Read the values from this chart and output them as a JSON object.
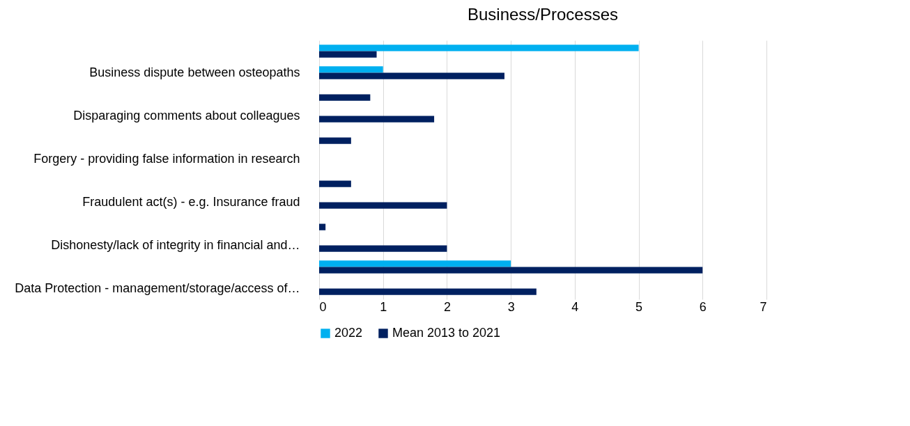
{
  "chart_data": {
    "type": "bar",
    "orientation": "horizontal",
    "title": "Business/Processes",
    "categories": [
      null,
      "Business dispute between osteopaths",
      null,
      "Disparaging comments about colleagues",
      null,
      "Forgery - providing false information in research",
      null,
      "Fraudulent act(s) - e.g. Insurance fraud",
      null,
      "Dishonesty/lack of integrity in financial and…",
      null,
      "Data Protection - management/storage/access of…"
    ],
    "series": [
      {
        "name": "2022",
        "color": "#00b0f0",
        "values": [
          5,
          1,
          null,
          null,
          null,
          null,
          null,
          null,
          null,
          null,
          3,
          null
        ]
      },
      {
        "name": "Mean 2013 to 2021",
        "color": "#002060",
        "values": [
          0.9,
          2.9,
          0.8,
          1.8,
          0.5,
          null,
          0.5,
          2,
          0.1,
          2,
          6,
          3.4
        ]
      }
    ],
    "xlim": [
      0,
      7
    ],
    "xticks": [
      0,
      1,
      2,
      3,
      4,
      5,
      6,
      7
    ],
    "grid": "x",
    "legend": "bottom"
  }
}
